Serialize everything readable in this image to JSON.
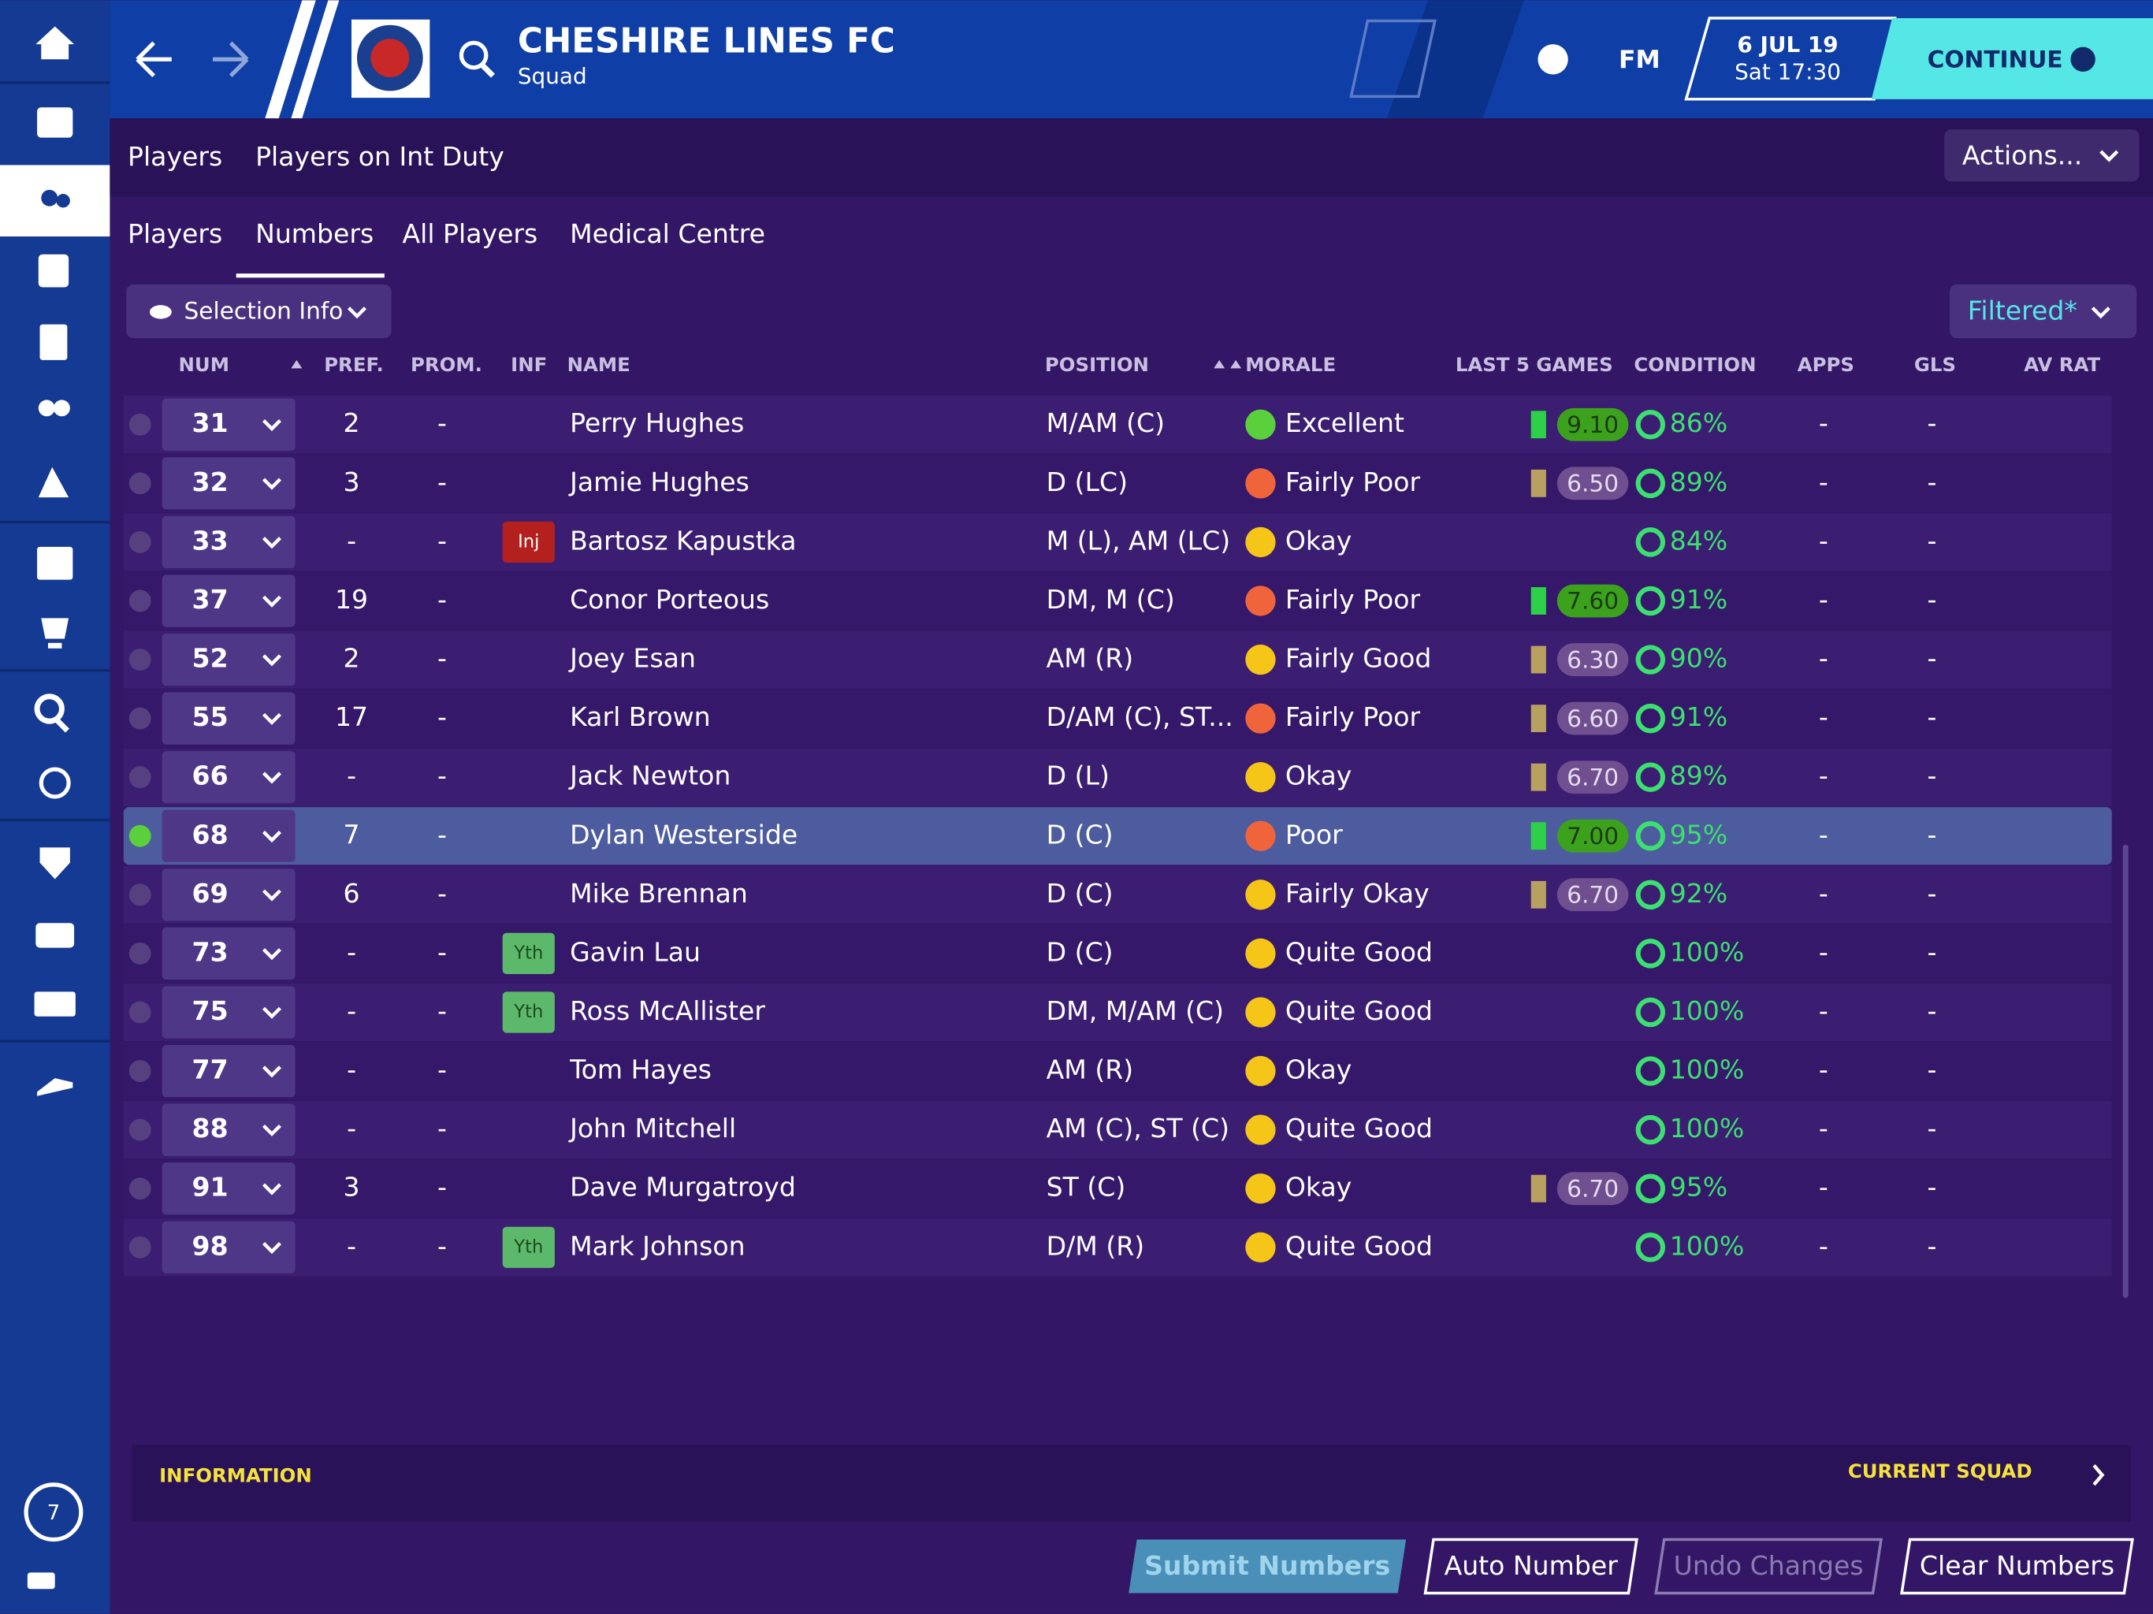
{
  "header": {
    "club": "CHESHIRE LINES FC",
    "subtitle": "Squad",
    "fm": "FM",
    "date": "6 JUL 19",
    "time": "Sat 17:30",
    "continue": "CONTINUE"
  },
  "tabs": [
    "Players",
    "Players on Int Duty"
  ],
  "actions": "Actions...",
  "subtabs": [
    "Players",
    "Numbers",
    "All Players",
    "Medical Centre"
  ],
  "selection": "Selection Info",
  "filter": "Filtered*",
  "table": {
    "columns": [
      "NUM",
      "PREF.",
      "PROM.",
      "INF",
      "NAME",
      "POSITION",
      "MORALE",
      "LAST 5 GAMES",
      "CONDITION",
      "APPS",
      "GLS",
      "AV RAT"
    ],
    "rows": [
      {
        "num": 31,
        "pref": 2,
        "prom": "-",
        "name": "Perry Hughes",
        "position": "M/AM (C)",
        "morale": "Excellent",
        "last5": "9.10",
        "condition": "86%",
        "apps": "-",
        "gls": "-"
      },
      {
        "num": 32,
        "pref": 3,
        "prom": "-",
        "name": "Jamie Hughes",
        "position": "D (LC)",
        "morale": "Fairly Poor",
        "last5": "6.50",
        "condition": "89%",
        "apps": "-",
        "gls": "-"
      },
      {
        "num": 33,
        "pref": "-",
        "prom": "-",
        "inf": "Inj",
        "name": "Bartosz Kapustka",
        "position": "M (L), AM (LC)",
        "morale": "Okay",
        "condition": "84%",
        "apps": "-",
        "gls": "-"
      },
      {
        "num": 37,
        "pref": 19,
        "prom": "-",
        "name": "Conor Porteous",
        "position": "DM, M (C)",
        "morale": "Fairly Poor",
        "last5": "7.60",
        "condition": "91%",
        "apps": "-",
        "gls": "-"
      },
      {
        "num": 52,
        "pref": 2,
        "prom": "-",
        "name": "Joey Esan",
        "position": "AM (R)",
        "morale": "Fairly Good",
        "last5": "6.30",
        "condition": "90%",
        "apps": "-",
        "gls": "-"
      },
      {
        "num": 55,
        "pref": 17,
        "prom": "-",
        "name": "Karl Brown",
        "position": "D/AM (C), ST...",
        "morale": "Fairly Poor",
        "last5": "6.60",
        "condition": "91%",
        "apps": "-",
        "gls": "-"
      },
      {
        "num": 66,
        "pref": "-",
        "prom": "-",
        "name": "Jack Newton",
        "position": "D (L)",
        "morale": "Okay",
        "last5": "6.70",
        "condition": "89%",
        "apps": "-",
        "gls": "-"
      },
      {
        "num": 68,
        "pref": 7,
        "prom": "-",
        "name": "Dylan Westerside",
        "position": "D (C)",
        "morale": "Poor",
        "last5": "7.00",
        "condition": "95%",
        "apps": "-",
        "gls": "-"
      },
      {
        "num": 69,
        "pref": 6,
        "prom": "-",
        "name": "Mike Brennan",
        "position": "D (C)",
        "morale": "Fairly Okay",
        "last5": "6.70",
        "condition": "92%",
        "apps": "-",
        "gls": "-"
      },
      {
        "num": 73,
        "pref": "-",
        "prom": "-",
        "inf": "Yth",
        "name": "Gavin Lau",
        "position": "D (C)",
        "morale": "Quite Good",
        "condition": "100%",
        "apps": "-",
        "gls": "-"
      },
      {
        "num": 75,
        "pref": "-",
        "prom": "-",
        "inf": "Yth",
        "name": "Ross McAllister",
        "position": "DM, M/AM (C)",
        "morale": "Quite Good",
        "condition": "100%",
        "apps": "-",
        "gls": "-"
      },
      {
        "num": 77,
        "pref": "-",
        "prom": "-",
        "name": "Tom Hayes",
        "position": "AM (R)",
        "morale": "Okay",
        "condition": "100%",
        "apps": "-",
        "gls": "-"
      },
      {
        "num": 88,
        "pref": "-",
        "prom": "-",
        "name": "John Mitchell",
        "position": "AM (C), ST (C)",
        "morale": "Quite Good",
        "condition": "100%",
        "apps": "-",
        "gls": "-"
      },
      {
        "num": 91,
        "pref": 3,
        "prom": "-",
        "name": "Dave Murgatroyd",
        "position": "ST (C)",
        "morale": "Okay",
        "last5": "6.70",
        "condition": "95%",
        "apps": "-",
        "gls": "-"
      },
      {
        "num": 98,
        "pref": "-",
        "prom": "-",
        "inf": "Yth",
        "name": "Mark Johnson",
        "position": "D/M (R)",
        "morale": "Quite Good",
        "condition": "100%",
        "apps": "-",
        "gls": "-"
      }
    ]
  },
  "footer": {
    "information": "INFORMATION",
    "current_squad": "CURRENT SQUAD",
    "buttons": [
      "Submit Numbers",
      "Auto Number",
      "Undo Changes",
      "Clear Numbers"
    ]
  },
  "sidebar_badge": "7"
}
